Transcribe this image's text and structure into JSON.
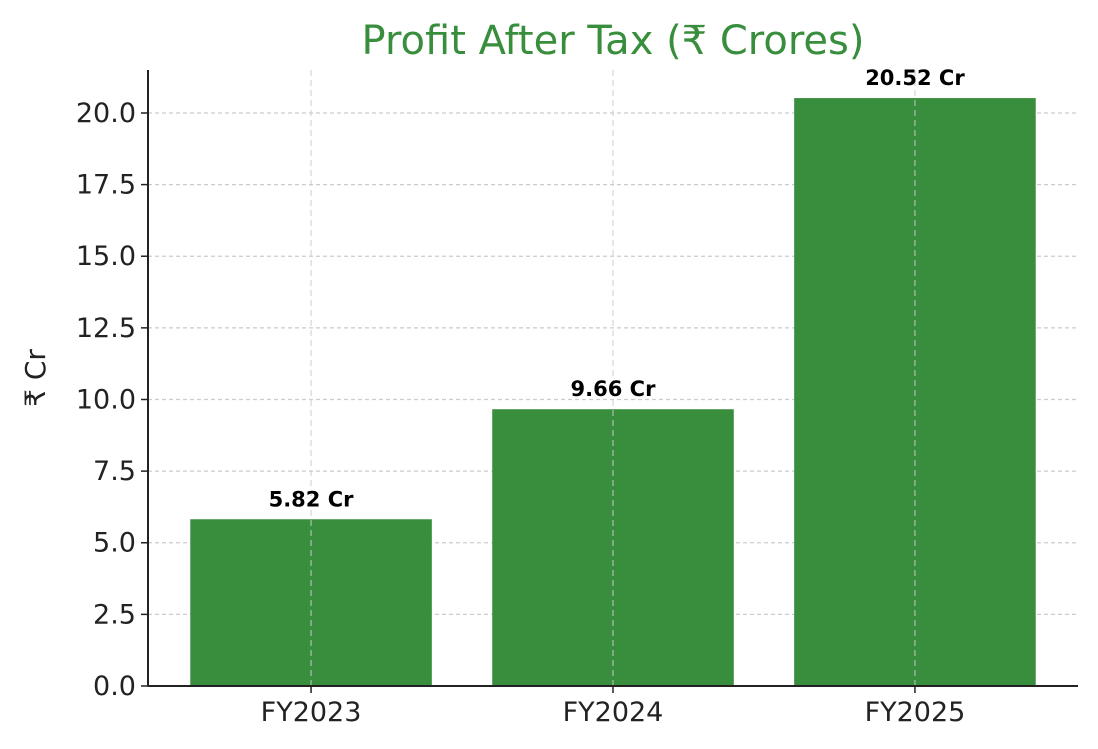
{
  "chart_data": {
    "type": "bar",
    "title": "Profit After Tax (₹ Crores)",
    "xlabel": "",
    "ylabel": "₹ Cr",
    "categories": [
      "FY2023",
      "FY2024",
      "FY2025"
    ],
    "values": [
      5.82,
      9.66,
      20.52
    ],
    "data_labels": [
      "5.82 Cr",
      "9.66 Cr",
      "20.52 Cr"
    ],
    "ylim": [
      0,
      21.5
    ],
    "yticks": [
      0.0,
      2.5,
      5.0,
      7.5,
      10.0,
      12.5,
      15.0,
      17.5,
      20.0
    ],
    "ytick_labels": [
      "0.0",
      "2.5",
      "5.0",
      "7.5",
      "10.0",
      "12.5",
      "15.0",
      "17.5",
      "20.0"
    ],
    "grid": true,
    "colors": {
      "bar": "#388e3c",
      "title": "#388e3c",
      "grid": "#cccccc",
      "axis": "#222222"
    }
  }
}
